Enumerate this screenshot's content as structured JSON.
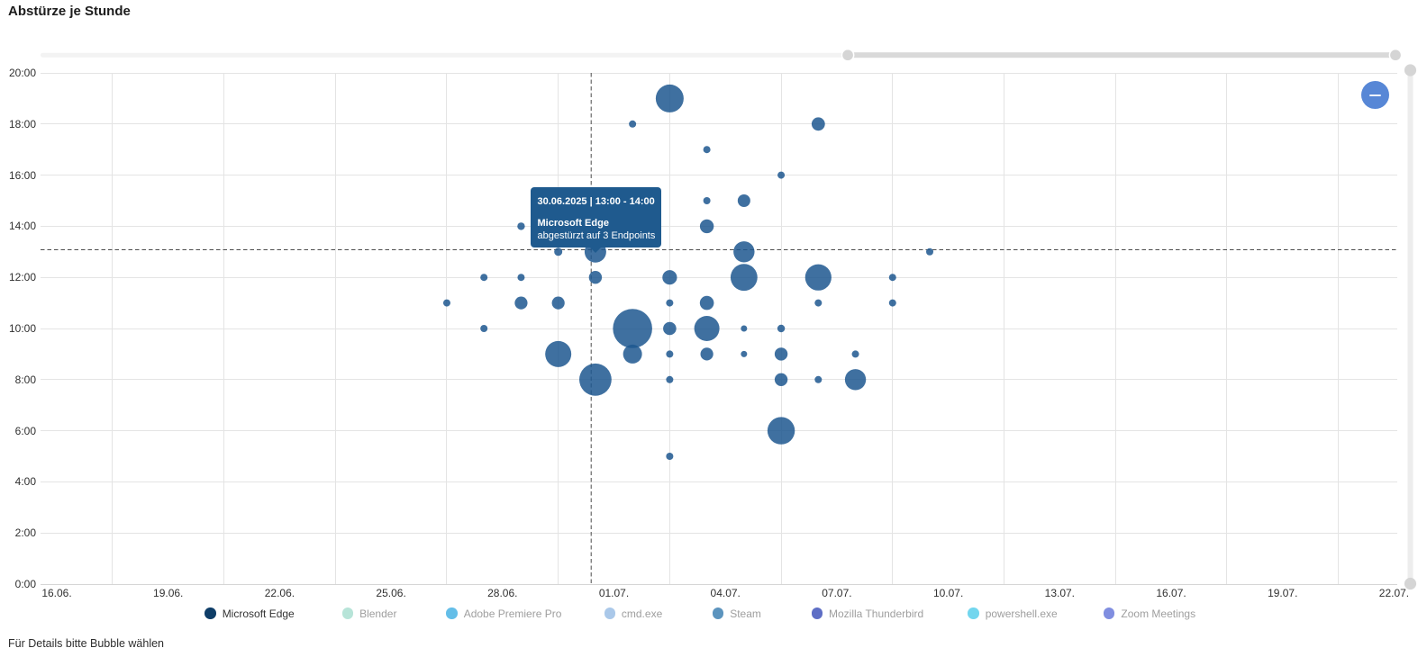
{
  "title": "Abstürze je Stunde",
  "footer_hint": "Für Details bitte Bubble wählen",
  "tooltip": {
    "period": "30.06.2025 | 13:00 - 14:00",
    "app": "Microsoft Edge",
    "detail": "abgestürzt auf 3 Endpoints"
  },
  "controls": {
    "zoom_out_icon": "minus",
    "x_range_slider": {
      "window_start_frac": 0.595,
      "window_end_frac": 1.0
    },
    "y_range_slider": {
      "window_start_frac": 0.0,
      "window_end_frac": 1.0
    }
  },
  "legend": [
    {
      "label": "Microsoft Edge",
      "color": "#0e3d67",
      "active": true
    },
    {
      "label": "Blender",
      "color": "#b7e4d8",
      "active": false
    },
    {
      "label": "Adobe Premiere Pro",
      "color": "#64bee8",
      "active": false
    },
    {
      "label": "cmd.exe",
      "color": "#aac8e9",
      "active": false
    },
    {
      "label": "Steam",
      "color": "#5c94be",
      "active": false
    },
    {
      "label": "Mozilla Thunderbird",
      "color": "#5e6ec5",
      "active": false
    },
    {
      "label": "powershell.exe",
      "color": "#72d6ee",
      "active": false
    },
    {
      "label": "Zoom Meetings",
      "color": "#808ee0",
      "active": false
    }
  ],
  "colors": {
    "series_fill": "#1d578f",
    "series_fill_opacity": 0.85,
    "tooltip_bg": "#1f5a8e",
    "grid_line": "#e4e4e4",
    "axis_line": "#d6d6d6",
    "crosshair": "#4d4d4d",
    "axis_text": "#303030",
    "legend_active_text": "#333333",
    "legend_inactive_text": "#9e9e9e",
    "zoom_out_button": "#5787d6",
    "slider_track": "#f3f3f3",
    "slider_range": "#d9d9d9",
    "slider_handle": "#d5d5d5",
    "vslider_track": "#ededed",
    "vslider_handle": "#d5d5d5"
  },
  "chart_data": {
    "type": "scatter",
    "subtype": "bubble",
    "title": "Abstürze je Stunde",
    "xlabel": "",
    "ylabel": "",
    "x_axis": {
      "tick_labels": [
        "16.06.",
        "19.06.",
        "22.06.",
        "25.06.",
        "28.06.",
        "01.07.",
        "04.07.",
        "07.07.",
        "10.07.",
        "13.07.",
        "16.07.",
        "19.07.",
        "22.07."
      ],
      "start_date": "16.06.",
      "end_date": "22.07.",
      "tick_step_days": 3
    },
    "y_axis": {
      "tick_labels": [
        "0:00",
        "2:00",
        "4:00",
        "6:00",
        "8:00",
        "10:00",
        "12:00",
        "14:00",
        "16:00",
        "18:00",
        "20:00"
      ],
      "min_hour": 0,
      "max_hour": 20,
      "tick_step_hours": 2
    },
    "grid": true,
    "legend_position": "bottom",
    "series": [
      {
        "name": "Microsoft Edge",
        "color": "#1d578f",
        "points": [
          {
            "date": "26.06.",
            "hour": 11,
            "r": 4
          },
          {
            "date": "27.06.",
            "hour": 12,
            "r": 4
          },
          {
            "date": "27.06.",
            "hour": 10,
            "r": 4
          },
          {
            "date": "28.06.",
            "hour": 14,
            "r": 4.2
          },
          {
            "date": "28.06.",
            "hour": 12,
            "r": 4
          },
          {
            "date": "28.06.",
            "hour": 11,
            "r": 7.1
          },
          {
            "date": "29.06.",
            "hour": 13,
            "r": 4.5
          },
          {
            "date": "29.06.",
            "hour": 11,
            "r": 7.1
          },
          {
            "date": "29.06.",
            "hour": 9,
            "r": 14.5
          },
          {
            "date": "30.06.",
            "hour": 13,
            "r": 12,
            "selected": true
          },
          {
            "date": "30.06.",
            "hour": 12,
            "r": 7.2
          },
          {
            "date": "30.06.",
            "hour": 8,
            "r": 17.9
          },
          {
            "date": "01.07.",
            "hour": 18,
            "r": 4
          },
          {
            "date": "01.07.",
            "hour": 10,
            "r": 21.8
          },
          {
            "date": "01.07.",
            "hour": 9,
            "r": 10.5
          },
          {
            "date": "02.07.",
            "hour": 19,
            "r": 15.5
          },
          {
            "date": "02.07.",
            "hour": 12,
            "r": 8.1
          },
          {
            "date": "02.07.",
            "hour": 11,
            "r": 4
          },
          {
            "date": "02.07.",
            "hour": 10,
            "r": 7.3
          },
          {
            "date": "02.07.",
            "hour": 9,
            "r": 4
          },
          {
            "date": "02.07.",
            "hour": 8,
            "r": 4
          },
          {
            "date": "02.07.",
            "hour": 5,
            "r": 4
          },
          {
            "date": "03.07.",
            "hour": 17,
            "r": 4
          },
          {
            "date": "03.07.",
            "hour": 15,
            "r": 4
          },
          {
            "date": "03.07.",
            "hour": 14,
            "r": 7.7
          },
          {
            "date": "03.07.",
            "hour": 11,
            "r": 7.8
          },
          {
            "date": "03.07.",
            "hour": 10,
            "r": 14
          },
          {
            "date": "03.07.",
            "hour": 9,
            "r": 7.1
          },
          {
            "date": "04.07.",
            "hour": 15,
            "r": 7
          },
          {
            "date": "04.07.",
            "hour": 13,
            "r": 11.7
          },
          {
            "date": "04.07.",
            "hour": 12,
            "r": 14.9
          },
          {
            "date": "04.07.",
            "hour": 10,
            "r": 3.5
          },
          {
            "date": "04.07.",
            "hour": 9,
            "r": 3.5
          },
          {
            "date": "05.07.",
            "hour": 16,
            "r": 4
          },
          {
            "date": "05.07.",
            "hour": 10,
            "r": 4.2
          },
          {
            "date": "05.07.",
            "hour": 9,
            "r": 7.2
          },
          {
            "date": "05.07.",
            "hour": 8,
            "r": 7.2
          },
          {
            "date": "05.07.",
            "hour": 6,
            "r": 15.2
          },
          {
            "date": "06.07.",
            "hour": 18,
            "r": 7.4
          },
          {
            "date": "06.07.",
            "hour": 12,
            "r": 14.6
          },
          {
            "date": "06.07.",
            "hour": 11,
            "r": 4
          },
          {
            "date": "06.07.",
            "hour": 8,
            "r": 4
          },
          {
            "date": "07.07.",
            "hour": 9,
            "r": 4
          },
          {
            "date": "07.07.",
            "hour": 8,
            "r": 11.7
          },
          {
            "date": "08.07.",
            "hour": 12,
            "r": 4
          },
          {
            "date": "08.07.",
            "hour": 11,
            "r": 4
          },
          {
            "date": "09.07.",
            "hour": 13,
            "r": 4
          }
        ]
      }
    ],
    "selected_point": {
      "date": "30.06.2025",
      "hour_range": "13:00 - 14:00",
      "app": "Microsoft Edge",
      "endpoints": 3
    },
    "crosshair": {
      "day_value": 14.386,
      "hour_value": 13.08
    }
  }
}
